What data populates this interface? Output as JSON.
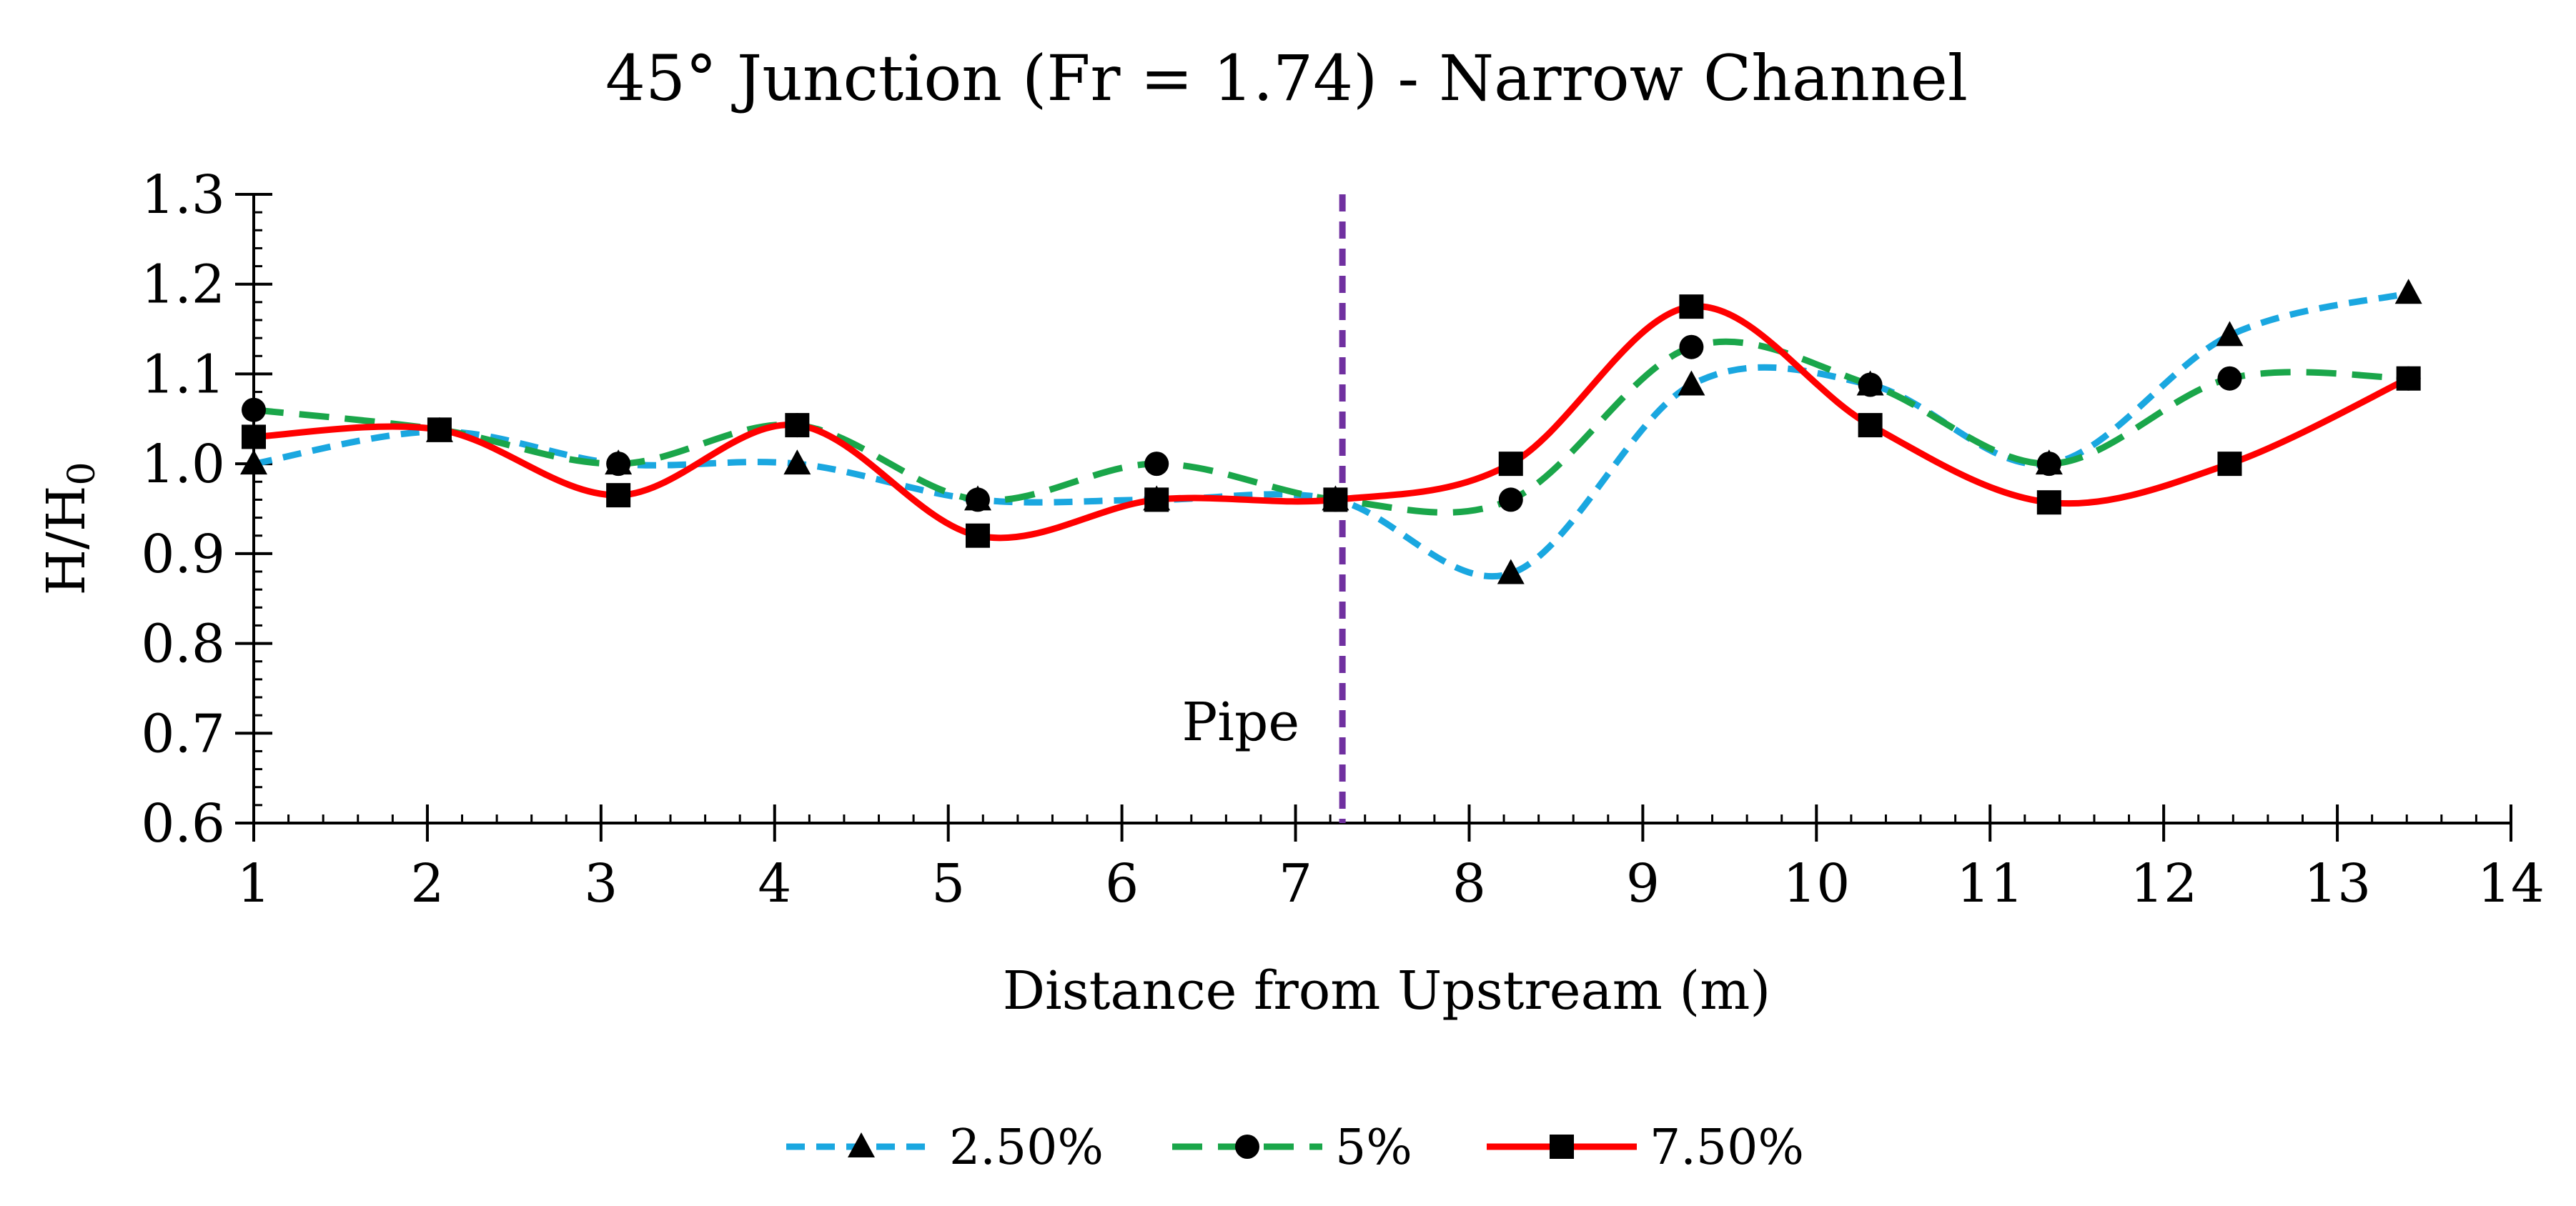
{
  "chart_data": {
    "type": "line",
    "title": "45° Junction (Fr = 1.74) - Narrow Channel",
    "xlabel": "Distance from Upstream (m)",
    "ylabel_main": "H/H",
    "ylabel_sub": "0",
    "xlim": [
      1,
      14
    ],
    "ylim": [
      0.6,
      1.3
    ],
    "x_ticks": [
      "1",
      "2",
      "3",
      "4",
      "5",
      "6",
      "7",
      "8",
      "9",
      "10",
      "11",
      "12",
      "13",
      "14"
    ],
    "y_ticks": [
      "0.6",
      "0.7",
      "0.8",
      "0.9",
      "1.0",
      "1.1",
      "1.2",
      "1.3"
    ],
    "x_tick_values": [
      1,
      2,
      3,
      4,
      5,
      6,
      7,
      8,
      9,
      10,
      11,
      12,
      13,
      14
    ],
    "y_tick_values": [
      0.6,
      0.7,
      0.8,
      0.9,
      1.0,
      1.1,
      1.2,
      1.3
    ],
    "x_minor_step": 0.2,
    "y_minor_step": 0.02,
    "smooth": true,
    "grid": false,
    "legend_position": "bottom",
    "series": [
      {
        "name": "2.50%",
        "color": "#1aa7e0",
        "marker": "triangle",
        "dash": "medium",
        "x": [
          1,
          2.07,
          3.1,
          4.13,
          5.17,
          6.2,
          7.23,
          8.24,
          9.28,
          10.31,
          11.34,
          12.38,
          13.41
        ],
        "y": [
          1.0,
          1.036,
          1.0,
          1.0,
          0.96,
          0.96,
          0.96,
          0.878,
          1.088,
          1.088,
          1.0,
          1.143,
          1.19
        ]
      },
      {
        "name": "5%",
        "color": "#1aa64a",
        "marker": "circle",
        "dash": "long",
        "x": [
          1,
          2.07,
          3.1,
          4.13,
          5.17,
          6.2,
          7.23,
          8.24,
          9.28,
          10.31,
          11.34,
          12.38,
          13.41
        ],
        "y": [
          1.06,
          1.038,
          1.0,
          1.043,
          0.96,
          1.0,
          0.96,
          0.96,
          1.13,
          1.088,
          1.0,
          1.095,
          1.095
        ]
      },
      {
        "name": "7.50%",
        "color": "#ff0000",
        "marker": "square",
        "dash": "solid",
        "x": [
          1,
          2.07,
          3.1,
          4.13,
          5.17,
          6.2,
          7.23,
          8.24,
          9.28,
          10.31,
          11.34,
          12.38,
          13.41
        ],
        "y": [
          1.03,
          1.038,
          0.965,
          1.043,
          0.92,
          0.96,
          0.96,
          1.0,
          1.175,
          1.043,
          0.957,
          1.0,
          1.095
        ]
      }
    ],
    "annotations": [
      {
        "label": "Pipe",
        "x": 7.27,
        "color": "#7030a0",
        "style": "dashed vertical line"
      }
    ]
  }
}
